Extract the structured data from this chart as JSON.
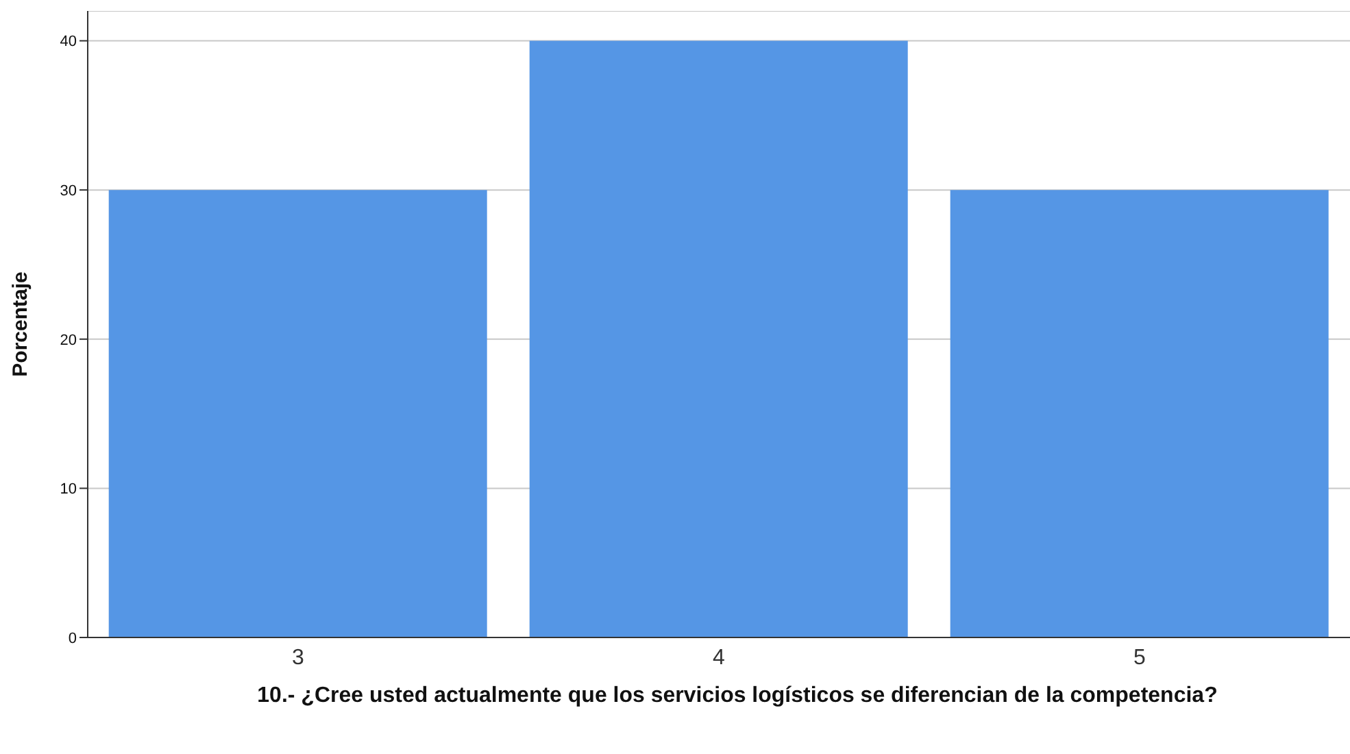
{
  "chart_data": {
    "type": "bar",
    "xlabel": "10.- ¿Cree usted actualmente que los servicios logísticos se diferencian de la competencia?",
    "ylabel": "Porcentaje",
    "categories": [
      "3",
      "4",
      "5"
    ],
    "values": [
      30,
      40,
      30
    ],
    "color": "#5596e5",
    "ylim": [
      0,
      42
    ],
    "yticks": [
      0,
      10,
      20,
      30,
      40
    ],
    "grid": "y"
  }
}
